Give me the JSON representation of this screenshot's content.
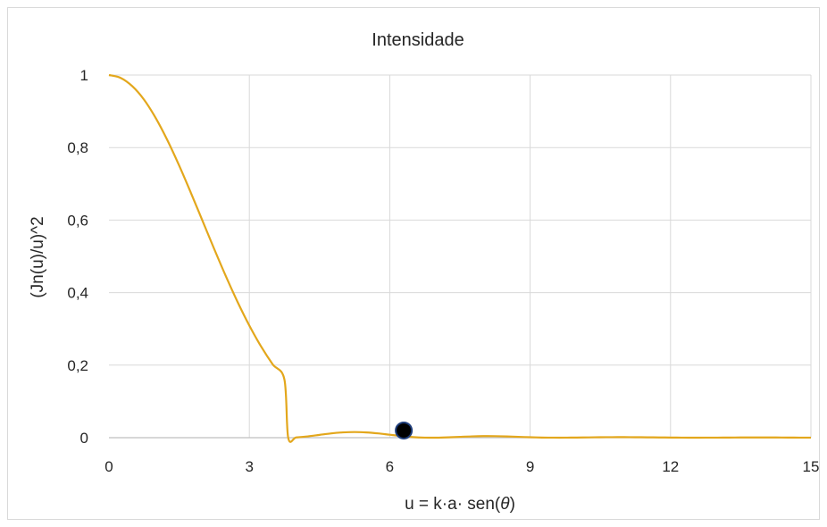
{
  "chart_data": {
    "type": "line",
    "title": "Intensidade",
    "xlabel": "u = k·a· sen(θ)",
    "ylabel": "(Jn(u)/u)^2",
    "xlim": [
      0,
      15
    ],
    "ylim": [
      0,
      1
    ],
    "x_ticks": [
      0,
      3,
      6,
      9,
      12,
      15
    ],
    "y_ticks": [
      0,
      0.2,
      0.4,
      0.6,
      0.8,
      1
    ],
    "x_tick_labels": [
      "0",
      "3",
      "6",
      "9",
      "12",
      "15"
    ],
    "y_tick_labels": [
      "0",
      "0,2",
      "0,4",
      "0,6",
      "0,8",
      "1"
    ],
    "grid": "vertical and horizontal",
    "legend": "none",
    "colors": {
      "series": "#e3a71c",
      "marker": "#000000",
      "marker_edge": "#1f3d7a",
      "grid": "#d9d9d9",
      "axis": "#bfbfbf"
    },
    "series": [
      {
        "x": [
          0,
          0.25,
          0.5,
          0.75,
          1.0,
          1.25,
          1.5,
          1.75,
          2.0,
          2.25,
          2.5,
          2.75,
          3.0,
          3.25,
          3.5,
          3.75,
          3.83,
          4.0,
          4.25,
          4.5,
          4.75,
          5.0,
          5.25,
          5.5,
          5.75,
          6.0,
          6.25,
          6.5,
          6.75,
          7.0,
          7.25,
          7.5,
          7.75,
          8.0,
          8.25,
          8.5,
          8.75,
          9.0,
          9.25,
          9.5,
          9.75,
          10.0,
          10.25,
          10.5,
          10.75,
          11.0,
          11.25,
          11.5,
          11.75,
          12.0,
          12.25,
          12.5,
          12.75,
          13.0,
          13.25,
          13.5,
          13.75,
          14.0,
          14.25,
          14.5,
          14.75,
          15.0
        ],
        "y": [
          1.0,
          0.992,
          0.969,
          0.932,
          0.8813,
          0.8199,
          0.7504,
          0.6754,
          0.5978,
          0.52,
          0.4447,
          0.3738,
          0.3091,
          0.2516,
          0.202,
          0.1599,
          0.0,
          0.0007,
          0.0035,
          0.0077,
          0.0118,
          0.0146,
          0.0156,
          0.0145,
          0.0118,
          0.0081,
          0.0045,
          0.0016,
          0.0002,
          0.0,
          0.0009,
          0.0023,
          0.0036,
          0.0043,
          0.0042,
          0.0034,
          0.0023,
          0.0012,
          0.0004,
          0.0001,
          0.0001,
          0.0004,
          0.0008,
          0.0012,
          0.0014,
          0.0015,
          0.0013,
          0.001,
          0.0007,
          0.0004,
          0.0001,
          0.0,
          0.0001,
          0.0002,
          0.0004,
          0.0006,
          0.0007,
          0.0007,
          0.0006,
          0.0004,
          0.0002,
          0.0001
        ]
      }
    ],
    "highlight_point": {
      "x": 6.3,
      "y": 0.01
    }
  }
}
